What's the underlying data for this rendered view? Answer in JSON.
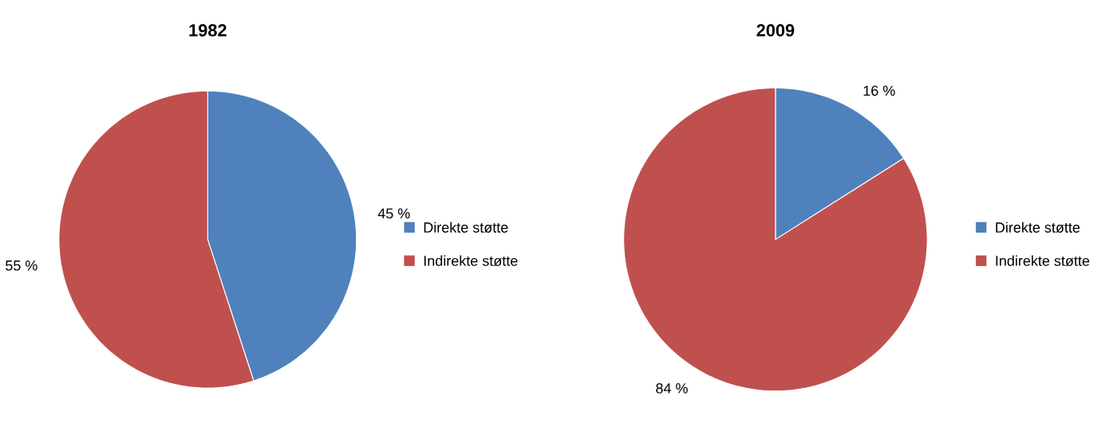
{
  "chart_data": [
    {
      "type": "pie",
      "title": "1982",
      "categories": [
        "Direkte støtte",
        "Indirekte støtte"
      ],
      "values": [
        45,
        55
      ],
      "colors": [
        "#4f81bd",
        "#c0504d"
      ],
      "value_labels": [
        "45 %",
        "55 %"
      ],
      "legend": "right"
    },
    {
      "type": "pie",
      "title": "2009",
      "categories": [
        "Direkte støtte",
        "Indirekte støtte"
      ],
      "values": [
        16,
        84
      ],
      "colors": [
        "#4f81bd",
        "#c0504d"
      ],
      "value_labels": [
        "16 %",
        "84 %"
      ],
      "legend": "right"
    }
  ]
}
